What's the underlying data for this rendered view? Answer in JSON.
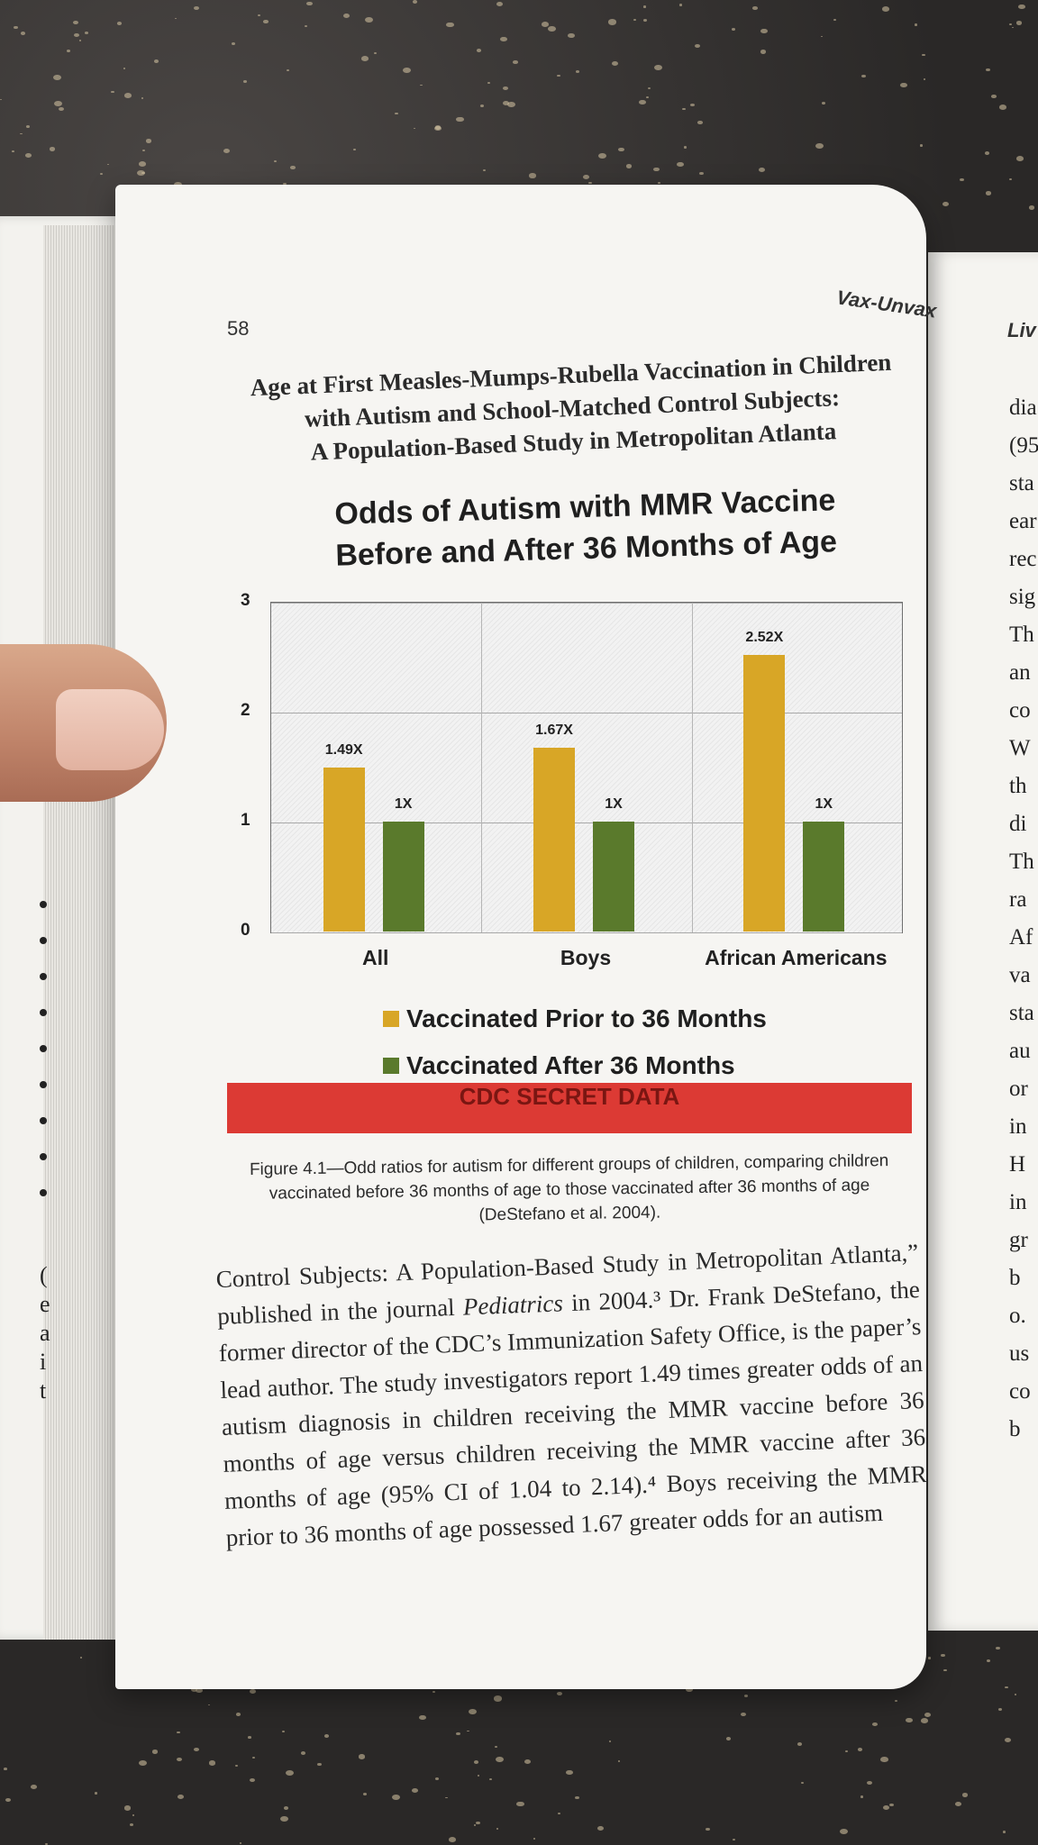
{
  "book": {
    "page_number": "58",
    "running_head": "Vax-Unvax",
    "right_running_head": "Liv",
    "right_page_fragments": [
      "dia",
      "(95",
      "sta",
      "ear",
      "rec",
      "sig",
      "Th",
      "an",
      "co",
      "W",
      "th",
      "di",
      "Th",
      "ra",
      "Af",
      "va",
      "sta",
      "au",
      "or",
      "in",
      "H",
      "in",
      "gr",
      "b",
      "o.",
      "us",
      "co",
      "b"
    ],
    "left_page_fragments": [
      "(",
      "e",
      "a",
      "i",
      "t"
    ]
  },
  "paper_title": [
    "Age at First Measles-Mumps-Rubella Vaccination in Children",
    "with Autism and School-Matched Control Subjects:",
    "A Population-Based Study in Metropolitan Atlanta"
  ],
  "chart": {
    "title_line1": "Odds of Autism with MMR Vaccine",
    "title_line2": "Before and After 36 Months of Age",
    "banner": "CDC SECRET DATA"
  },
  "chart_data": {
    "type": "bar",
    "title": "Odds of Autism with MMR Vaccine Before and After 36 Months of Age",
    "categories": [
      "All",
      "Boys",
      "African Americans"
    ],
    "series": [
      {
        "name": "Vaccinated Prior to 36 Months",
        "values": [
          1.49,
          1.67,
          2.52
        ],
        "labels": [
          "1.49X",
          "1.67X",
          "2.52X"
        ],
        "color": "#d8a626"
      },
      {
        "name": "Vaccinated After 36 Months",
        "values": [
          1,
          1,
          1
        ],
        "labels": [
          "1X",
          "1X",
          "1X"
        ],
        "color": "#5a7a2c"
      }
    ],
    "yticks": [
      "0",
      "1",
      "2",
      "3"
    ],
    "ylim": [
      0,
      3
    ],
    "grid": true,
    "legend": "bottom"
  },
  "caption": "Figure 4.1—Odd ratios for autism for different groups of children, comparing children vaccinated before 36 months of age to those vaccinated after 36 months of age (DeStefano et al. 2004).",
  "body": {
    "part1": "Control Subjects: A Population-Based Study in Metropolitan Atlanta,” published in the journal ",
    "journal": "Pediatrics",
    "part2": " in 2004.³ Dr. Frank DeStefano, the former director of the CDC’s Immunization Safety Office, is the paper’s lead author. The study investigators report 1.49 times greater odds of an autism diagnosis in children receiving the MMR vaccine before 36 months of age versus children receiving the MMR vaccine after 36 months of age (95% CI of 1.04 to 2.14).⁴ Boys receiving the MMR prior to 36 months of age possessed 1.67 greater odds for an autism"
  }
}
